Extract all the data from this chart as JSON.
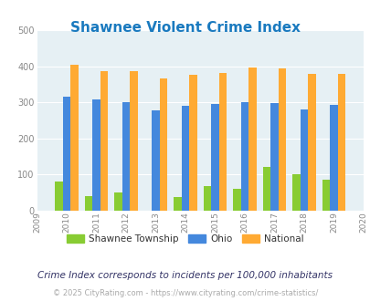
{
  "title": "Shawnee Violent Crime Index",
  "title_color": "#1a7abf",
  "years": [
    2009,
    2010,
    2011,
    2012,
    2013,
    2014,
    2015,
    2016,
    2017,
    2018,
    2019,
    2020
  ],
  "bar_years": [
    2010,
    2011,
    2012,
    2013,
    2014,
    2015,
    2016,
    2017,
    2018,
    2019
  ],
  "shawnee": [
    82,
    40,
    50,
    0,
    38,
    67,
    60,
    122,
    102,
    86
  ],
  "ohio": [
    315,
    308,
    300,
    278,
    290,
    295,
    300,
    298,
    280,
    293
  ],
  "national": [
    405,
    387,
    387,
    365,
    376,
    381,
    397,
    394,
    379,
    379
  ],
  "shawnee_color": "#88cc33",
  "ohio_color": "#4488dd",
  "national_color": "#ffaa33",
  "bg_color": "#e6f0f4",
  "ylim": [
    0,
    500
  ],
  "yticks": [
    0,
    100,
    200,
    300,
    400,
    500
  ],
  "footer_text1": "Crime Index corresponds to incidents per 100,000 inhabitants",
  "footer_text2": "© 2025 CityRating.com - https://www.cityrating.com/crime-statistics/",
  "legend_labels": [
    "Shawnee Township",
    "Ohio",
    "National"
  ],
  "figsize": [
    4.06,
    3.3
  ],
  "dpi": 100
}
